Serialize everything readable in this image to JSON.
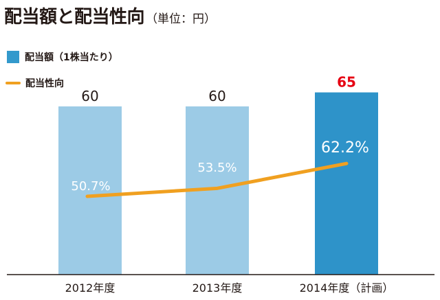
{
  "title": {
    "main": "配当額と配当性向",
    "unit": "（単位：円）"
  },
  "legend": [
    {
      "label": "配当額（1株当たり）",
      "color": "#3399cc",
      "kind": "bar"
    },
    {
      "label": "配当性向",
      "color": "#f0a020",
      "kind": "line"
    }
  ],
  "chart_data": {
    "type": "bar",
    "title": "配当額と配当性向",
    "categories": [
      "2012年度",
      "2013年度",
      "2014年度（計画）"
    ],
    "series": [
      {
        "name": "配当額（1株当たり）",
        "type": "bar",
        "values": [
          60,
          60,
          65
        ],
        "labels": [
          "60",
          "60",
          "65"
        ],
        "colors": [
          "#9ccbe6",
          "#9ccbe6",
          "#2e93c9"
        ],
        "label_colors": [
          "#231815",
          "#231815",
          "#e60012"
        ]
      },
      {
        "name": "配当性向",
        "type": "line",
        "values": [
          50.7,
          53.5,
          62.2
        ],
        "labels": [
          "50.7%",
          "53.5%",
          "62.2%"
        ],
        "color": "#f0a020"
      }
    ],
    "ylim": [
      0,
      70
    ],
    "y2lim": [
      0,
      100
    ],
    "grid": false,
    "legend_position": "top-left"
  }
}
